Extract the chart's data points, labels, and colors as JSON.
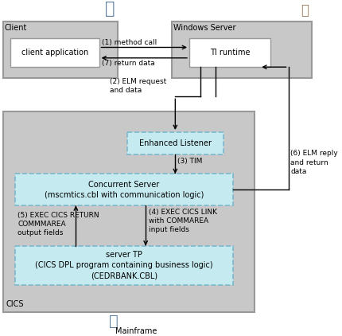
{
  "fig_width": 4.31,
  "fig_height": 4.22,
  "bg_color": "#ffffff",
  "client_label": "Client",
  "windows_label": "Windows Server",
  "cics_label": "CICS",
  "client_app_label": "client application",
  "ti_runtime_label": "TI runtime",
  "enhanced_listener_label": "Enhanced Listener",
  "concurrent_server_label": "Concurrent Server\n(mscmtics.cbl with communication logic)",
  "server_tp_label": "server TP\n(CICS DPL program containing business logic)\n(CEDRBANK.CBL)",
  "mainframe_label": "Mainframe",
  "arrow1_label": "(1) method call",
  "arrow7_label": "(7) return data",
  "arrow2_label": "(2) ELM request\nand data",
  "arrow3_label": "(3) TIM",
  "arrow4_label": "(4) EXEC CICS LINK\nwith COMMAREA\ninput fields",
  "arrow5_label": "(5) EXEC CICS RETURN\nCOMMMAREA\noutput fields",
  "arrow6_label": "(6) ELM reply\nand return\ndata",
  "gray_box": "#c8c8c8",
  "gray_border": "#999999",
  "blue_fill": "#c5eaf0",
  "blue_border": "#7ab8cc",
  "white_fill": "#ffffff"
}
